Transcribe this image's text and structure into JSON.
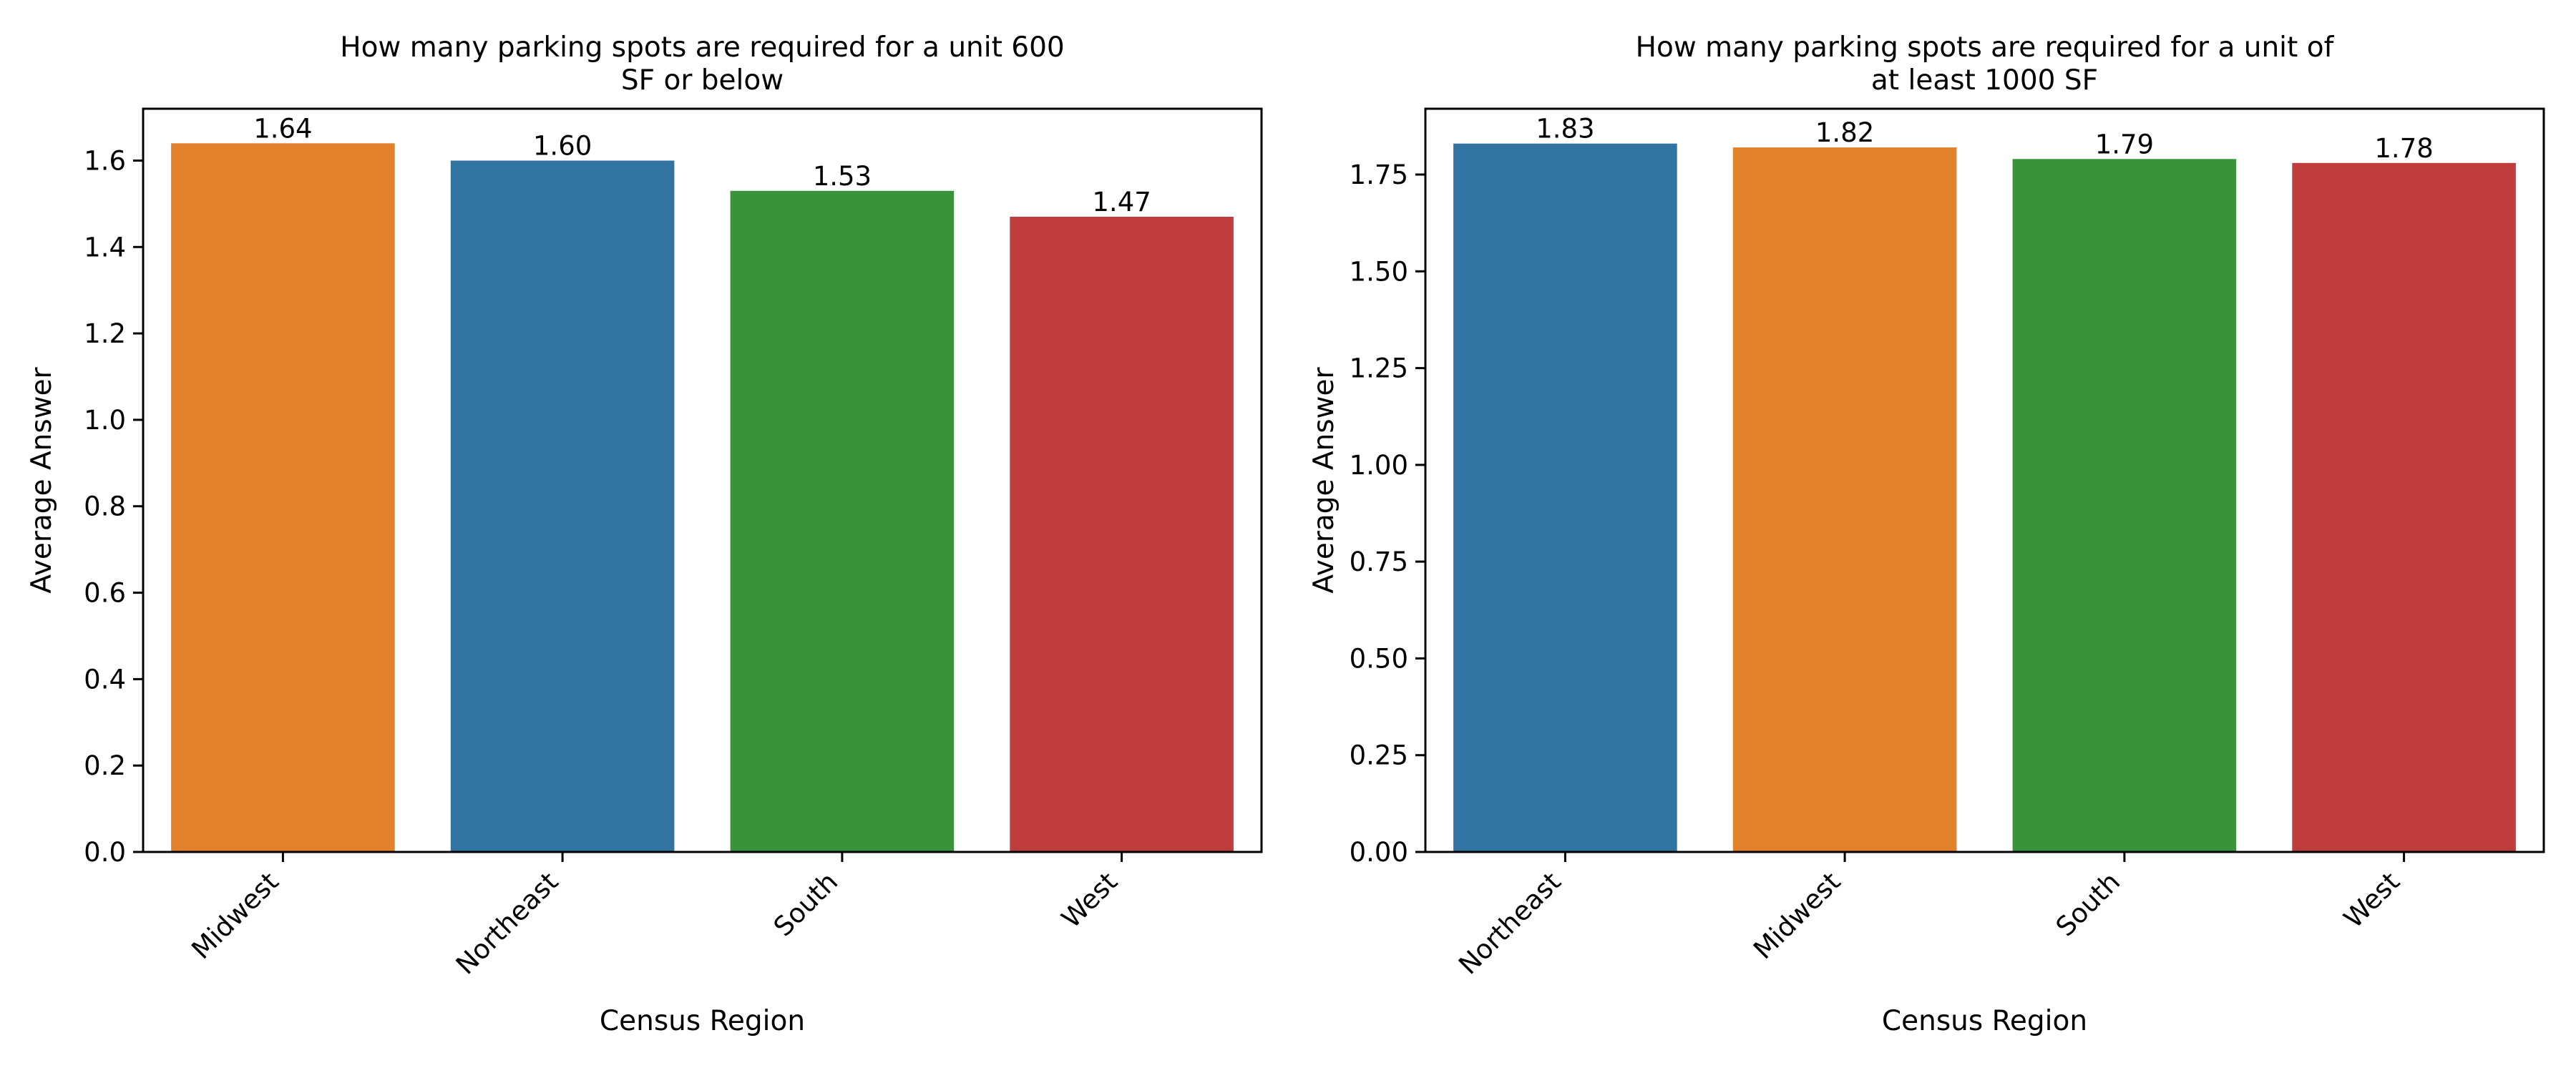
{
  "chart_data": [
    {
      "type": "bar",
      "title_lines": [
        "How many parking spots are required for a unit 600",
        "SF or below"
      ],
      "xlabel": "Census Region",
      "ylabel": "Average Answer",
      "categories": [
        "Midwest",
        "Northeast",
        "South",
        "West"
      ],
      "values": [
        1.64,
        1.6,
        1.53,
        1.47
      ],
      "data_labels": [
        "1.64",
        "1.60",
        "1.53",
        "1.47"
      ],
      "colors": [
        "#e1812c",
        "#3274a1",
        "#3a923a",
        "#c03d3e"
      ],
      "ylim": [
        0,
        1.72
      ],
      "yticks": [
        0.0,
        0.2,
        0.4,
        0.6,
        0.8,
        1.0,
        1.2,
        1.4,
        1.6
      ],
      "ytick_labels": [
        "0.0",
        "0.2",
        "0.4",
        "0.6",
        "0.8",
        "1.0",
        "1.2",
        "1.4",
        "1.6"
      ],
      "grid": false,
      "legend": "none"
    },
    {
      "type": "bar",
      "title_lines": [
        "How many parking spots are required for a unit of",
        "at least 1000 SF"
      ],
      "xlabel": "Census Region",
      "ylabel": "Average Answer",
      "categories": [
        "Northeast",
        "Midwest",
        "South",
        "West"
      ],
      "values": [
        1.83,
        1.82,
        1.79,
        1.78
      ],
      "data_labels": [
        "1.83",
        "1.82",
        "1.79",
        "1.78"
      ],
      "colors": [
        "#3274a1",
        "#e1812c",
        "#3a923a",
        "#c03d3e"
      ],
      "ylim": [
        0,
        1.92
      ],
      "yticks": [
        0.0,
        0.25,
        0.5,
        0.75,
        1.0,
        1.25,
        1.5,
        1.75
      ],
      "ytick_labels": [
        "0.00",
        "0.25",
        "0.50",
        "0.75",
        "1.00",
        "1.25",
        "1.50",
        "1.75"
      ],
      "grid": false,
      "legend": "none"
    }
  ]
}
